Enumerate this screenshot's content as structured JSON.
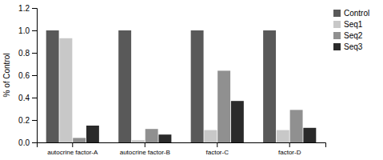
{
  "chart_data": {
    "type": "bar",
    "categories": [
      "autocrine factor-A",
      "autocrine factor-B",
      "factor-C",
      "factor-D"
    ],
    "series": [
      {
        "name": "Control",
        "color": "#595959",
        "values": [
          1.0,
          1.0,
          1.0,
          1.0
        ]
      },
      {
        "name": "Seq1",
        "color": "#c8c8c8",
        "values": [
          0.93,
          0.02,
          0.11,
          0.11
        ]
      },
      {
        "name": "Seq2",
        "color": "#909090",
        "values": [
          0.04,
          0.12,
          0.64,
          0.29
        ]
      },
      {
        "name": "Seq3",
        "color": "#2a2a2a",
        "values": [
          0.15,
          0.07,
          0.37,
          0.13
        ]
      }
    ],
    "ylabel": "% of Control",
    "ylim": [
      0,
      1.2
    ],
    "yticks": [
      {
        "value": 0,
        "label": "0.0"
      },
      0.2,
      0.4,
      0.6,
      0.8,
      {
        "value": 1,
        "label": "1.0"
      },
      1.2
    ],
    "legend": "upper right"
  }
}
